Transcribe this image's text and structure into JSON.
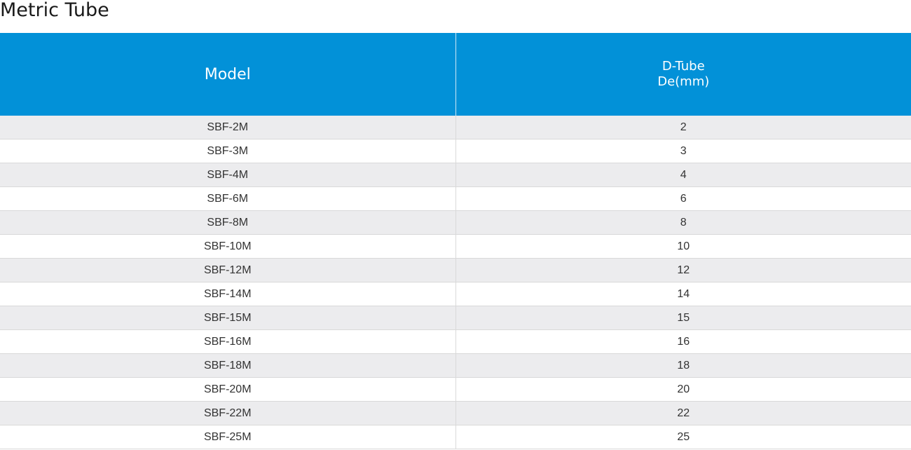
{
  "page": {
    "title": "Metric Tube"
  },
  "table": {
    "headers": {
      "model": "Model",
      "dtube_line1": "D-Tube",
      "dtube_line2": "De(mm)"
    },
    "rows": [
      {
        "model": "SBF-2M",
        "de": "2"
      },
      {
        "model": "SBF-3M",
        "de": "3"
      },
      {
        "model": "SBF-4M",
        "de": "4"
      },
      {
        "model": "SBF-6M",
        "de": "6"
      },
      {
        "model": "SBF-8M",
        "de": "8"
      },
      {
        "model": "SBF-10M",
        "de": "10"
      },
      {
        "model": "SBF-12M",
        "de": "12"
      },
      {
        "model": "SBF-14M",
        "de": "14"
      },
      {
        "model": "SBF-15M",
        "de": "15"
      },
      {
        "model": "SBF-16M",
        "de": "16"
      },
      {
        "model": "SBF-18M",
        "de": "18"
      },
      {
        "model": "SBF-20M",
        "de": "20"
      },
      {
        "model": "SBF-22M",
        "de": "22"
      },
      {
        "model": "SBF-25M",
        "de": "25"
      }
    ]
  },
  "colors": {
    "header_bg": "#0291d8",
    "header_text": "#ffffff",
    "row_alt_bg": "#ececee",
    "row_bg": "#ffffff",
    "cell_text": "#333333"
  }
}
